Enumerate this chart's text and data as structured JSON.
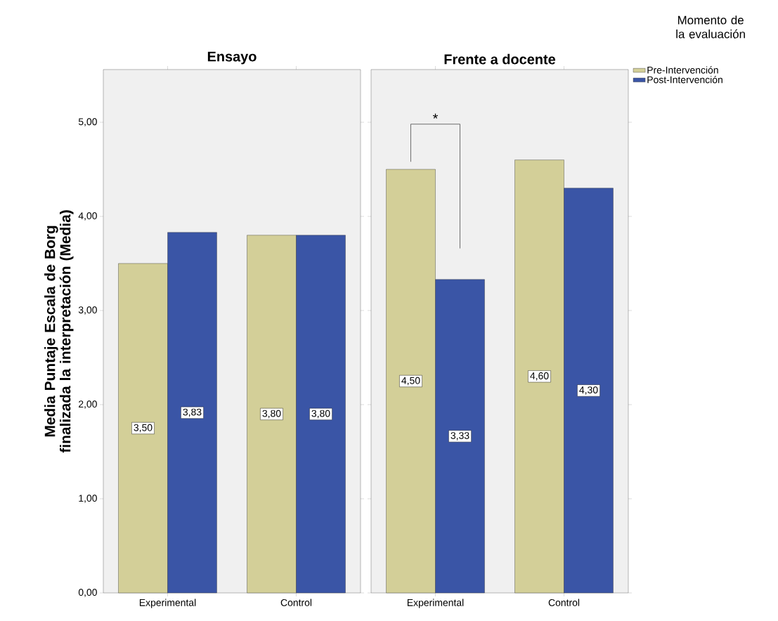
{
  "chart_data": [
    {
      "type": "bar",
      "title": "Ensayo",
      "ylabel": "Media Puntaje Escala de Borg finalizada la interpretación (Media)",
      "categories": [
        "Experimental",
        "Control"
      ],
      "series": [
        {
          "color": "#d3cf98",
          "values": [
            3.5,
            3.8
          ],
          "value_labels": [
            "3,50",
            "3,80"
          ]
        },
        {
          "color": "#3a55a6",
          "values": [
            3.83,
            3.8
          ],
          "value_labels": [
            "3,83",
            "3,80"
          ]
        }
      ],
      "ylim": [
        0,
        5.56
      ],
      "yticks": [
        {
          "value": 0,
          "label": "0,00"
        },
        {
          "value": 1,
          "label": "1,00"
        },
        {
          "value": 2,
          "label": "2,00"
        },
        {
          "value": 3,
          "label": "3,00"
        },
        {
          "value": 4,
          "label": "4,00"
        },
        {
          "value": 5,
          "label": "5,00"
        }
      ]
    },
    {
      "type": "bar",
      "title": "Frente a docente",
      "legend_title": "Momento de la evaluación",
      "legend": "top right",
      "tick_labels": "x",
      "categories": [
        "Experimental",
        "Control"
      ],
      "series": [
        {
          "name": "Pre-Intervención",
          "color": "#d3cf98",
          "values": [
            4.5,
            4.6
          ],
          "value_labels": [
            "4,50",
            "4,60"
          ]
        },
        {
          "name": "Post-Intervención",
          "color": "#3a55a6",
          "values": [
            3.33,
            4.3
          ],
          "value_labels": [
            "3,33",
            "4,30"
          ]
        }
      ],
      "ylim": [
        0,
        5.56
      ],
      "yticks": [
        {
          "value": 0,
          "label": null
        },
        {
          "value": 1,
          "label": null
        },
        {
          "value": 2,
          "label": null
        },
        {
          "value": 3,
          "label": null
        },
        {
          "value": 4,
          "label": null
        },
        {
          "value": 5,
          "label": null
        }
      ],
      "annotations": [
        "*"
      ]
    }
  ]
}
